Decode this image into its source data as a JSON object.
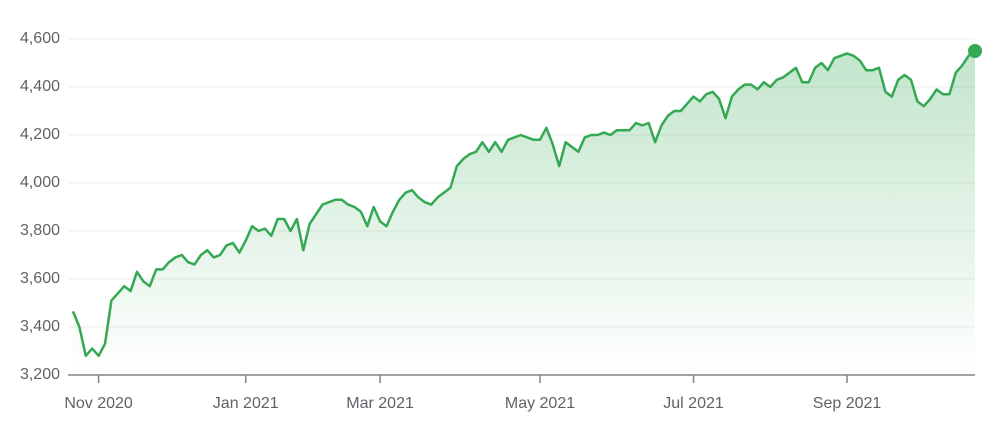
{
  "chart_data": {
    "type": "area",
    "categories": [
      null,
      null,
      null,
      null,
      "Nov 2020",
      null,
      null,
      null,
      null,
      null,
      null,
      null,
      null,
      null,
      null,
      null,
      null,
      null,
      null,
      null,
      null,
      null,
      null,
      null,
      null,
      null,
      null,
      "Jan 2021",
      null,
      null,
      null,
      null,
      null,
      null,
      null,
      null,
      null,
      null,
      null,
      null,
      null,
      null,
      null,
      null,
      null,
      null,
      null,
      null,
      "Mar 2021",
      null,
      null,
      null,
      null,
      null,
      null,
      null,
      null,
      null,
      null,
      null,
      null,
      null,
      null,
      null,
      null,
      null,
      null,
      null,
      null,
      null,
      null,
      null,
      null,
      "May 2021",
      null,
      null,
      null,
      null,
      null,
      null,
      null,
      null,
      null,
      null,
      null,
      null,
      null,
      null,
      null,
      null,
      null,
      null,
      null,
      null,
      null,
      null,
      null,
      "Jul 2021",
      null,
      null,
      null,
      null,
      null,
      null,
      null,
      null,
      null,
      null,
      null,
      null,
      null,
      null,
      null,
      null,
      null,
      null,
      null,
      null,
      null,
      null,
      null,
      "Sep 2021",
      null,
      null,
      null,
      null,
      null,
      null,
      null,
      null,
      null,
      null,
      null,
      null,
      null,
      null,
      null,
      null,
      null,
      null,
      null,
      null
    ],
    "values": [
      3465,
      3400,
      3280,
      3310,
      3280,
      3330,
      3510,
      3540,
      3570,
      3550,
      3630,
      3590,
      3570,
      3640,
      3640,
      3670,
      3690,
      3700,
      3670,
      3660,
      3700,
      3720,
      3690,
      3700,
      3740,
      3750,
      3710,
      3760,
      3820,
      3800,
      3810,
      3780,
      3850,
      3850,
      3800,
      3850,
      3720,
      3830,
      3870,
      3910,
      3920,
      3930,
      3930,
      3910,
      3900,
      3880,
      3820,
      3900,
      3840,
      3820,
      3880,
      3930,
      3960,
      3970,
      3940,
      3920,
      3910,
      3940,
      3960,
      3980,
      4070,
      4100,
      4120,
      4130,
      4170,
      4130,
      4170,
      4130,
      4180,
      4190,
      4200,
      4190,
      4180,
      4180,
      4230,
      4160,
      4070,
      4170,
      4150,
      4130,
      4190,
      4200,
      4200,
      4210,
      4200,
      4220,
      4220,
      4220,
      4250,
      4240,
      4250,
      4170,
      4240,
      4280,
      4300,
      4300,
      4330,
      4360,
      4340,
      4370,
      4380,
      4350,
      4270,
      4360,
      4390,
      4410,
      4410,
      4390,
      4420,
      4400,
      4430,
      4440,
      4460,
      4480,
      4420,
      4420,
      4480,
      4500,
      4470,
      4520,
      4530,
      4540,
      4530,
      4510,
      4470,
      4470,
      4480,
      4380,
      4360,
      4430,
      4450,
      4430,
      4340,
      4320,
      4350,
      4390,
      4370,
      4370,
      4460,
      4490,
      4530,
      4550
    ],
    "color": "#34a853",
    "ylim": [
      3200,
      4700
    ],
    "yticks": [
      {
        "value": 3200,
        "label": "3,200"
      },
      {
        "value": 3400,
        "label": "3,400"
      },
      {
        "value": 3600,
        "label": "3,600"
      },
      {
        "value": 3800,
        "label": "3,800"
      },
      {
        "value": 4000,
        "label": "4,000"
      },
      {
        "value": 4200,
        "label": "4,200"
      },
      {
        "value": 4400,
        "label": "4,400"
      },
      {
        "value": 4600,
        "label": "4,600"
      }
    ],
    "grid": true
  }
}
